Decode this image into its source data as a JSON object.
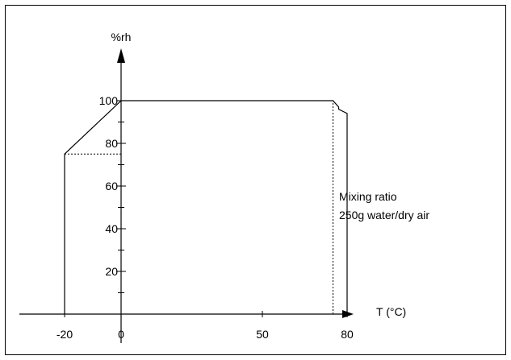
{
  "chart_data": {
    "type": "area",
    "title": "",
    "xlabel": "T (°C)",
    "ylabel": "%rh",
    "x_ticks": [
      {
        "value": -20,
        "label": "-20"
      },
      {
        "value": 0,
        "label": "0"
      },
      {
        "value": 50,
        "label": "50"
      },
      {
        "value": 80,
        "label": "80"
      }
    ],
    "y_ticks": [
      {
        "value": 20,
        "label": "20"
      },
      {
        "value": 40,
        "label": "40"
      },
      {
        "value": 60,
        "label": "60"
      },
      {
        "value": 80,
        "label": "80"
      },
      {
        "value": 100,
        "label": "100"
      }
    ],
    "y_minor_ticks": [
      10,
      30,
      50,
      70,
      90
    ],
    "boundary": [
      {
        "x": -20,
        "y": 0
      },
      {
        "x": -20,
        "y": 75
      },
      {
        "x": 0,
        "y": 100
      },
      {
        "x": 75,
        "y": 100
      },
      {
        "x": 77,
        "y": 97
      },
      {
        "x": 77,
        "y": 96
      },
      {
        "x": 80,
        "y": 94
      },
      {
        "x": 80,
        "y": 0
      }
    ],
    "reference_lines": [
      {
        "orientation": "horizontal",
        "y": 75,
        "x_from": -20,
        "x_to": 0,
        "style": "dotted"
      },
      {
        "orientation": "vertical",
        "x": 75,
        "y_from": 0,
        "y_to": 100,
        "style": "dotted"
      }
    ],
    "annotation": {
      "lines": [
        "Mixing ratio",
        "250g water/dry air"
      ]
    }
  }
}
